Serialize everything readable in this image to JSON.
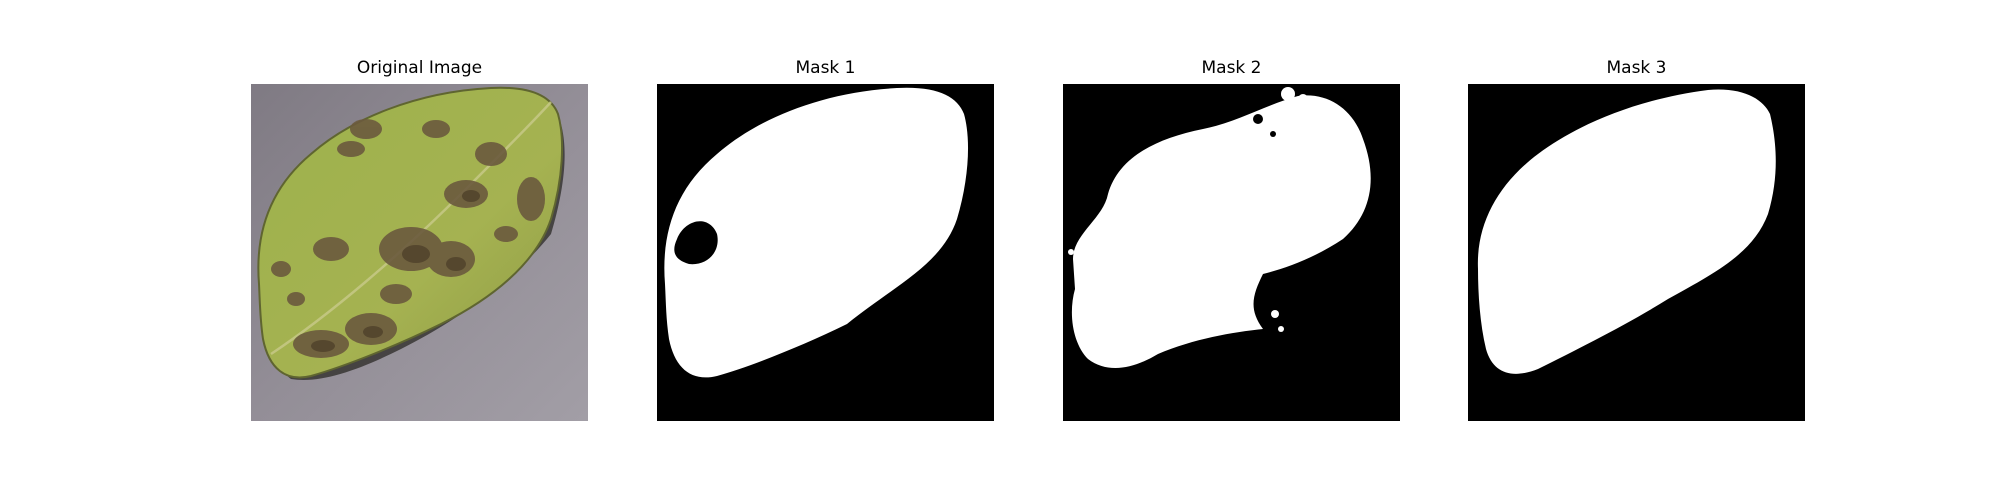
{
  "figure": {
    "panels": [
      {
        "title": "Original Image",
        "kind": "photo"
      },
      {
        "title": "Mask 1",
        "kind": "mask"
      },
      {
        "title": "Mask 2",
        "kind": "mask"
      },
      {
        "title": "Mask 3",
        "kind": "mask"
      }
    ]
  },
  "colors": {
    "mask_background": "#000000",
    "mask_foreground": "#ffffff",
    "surface": "#8f8a92",
    "leaf_green": "#9fb04a",
    "lesion_brown": "#6b5a3e"
  }
}
